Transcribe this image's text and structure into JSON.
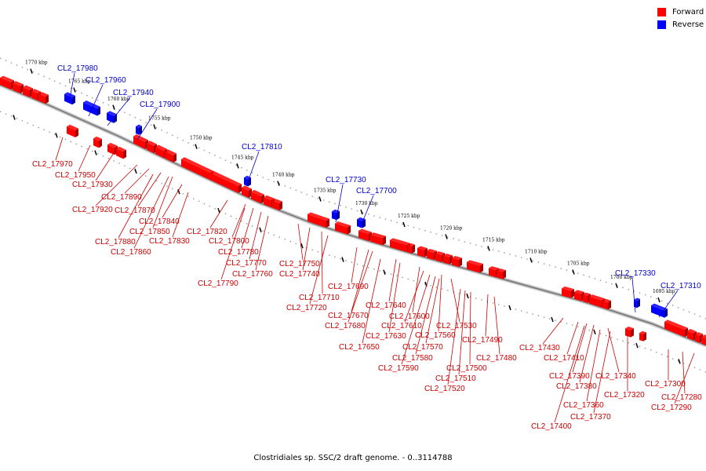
{
  "caption": "Clostridiales sp. SSC/2 draft genome. - 0..3114788",
  "legend": [
    {
      "label": "Forward",
      "color": "#ff0000"
    },
    {
      "label": "Reverse",
      "color": "#0000ff"
    }
  ],
  "colors": {
    "forward": "#ff0000",
    "forward_dark": "#a40000",
    "reverse": "#0000ff",
    "reverse_dark": "#00009a",
    "backbone": "#808080",
    "label_forward": "#cc0000",
    "label_reverse": "#0000cc"
  },
  "ruler_ticks": [
    "1770 kbp",
    "1765 kbp",
    "1760 kbp",
    "1755 kbp",
    "1750 kbp",
    "1745 kbp",
    "1740 kbp",
    "1735 kbp",
    "1730 kbp",
    "1725 kbp",
    "1720 kbp",
    "1715 kbp",
    "1710 kbp",
    "1705 kbp",
    "1700 kbp",
    "1695 kbp"
  ],
  "forward_gene_labels": [
    "CL2_17970",
    "CL2_17950",
    "CL2_17930",
    "CL2_17920",
    "CL2_17890",
    "CL2_17870",
    "CL2_17880",
    "CL2_17860",
    "CL2_17850",
    "CL2_17840",
    "CL2_17830",
    "CL2_17820",
    "CL2_17800",
    "CL2_17780",
    "CL2_17770",
    "CL2_17760",
    "CL2_17790",
    "CL2_17750",
    "CL2_17740",
    "CL2_17710",
    "CL2_17720",
    "CL2_17690",
    "CL2_17670",
    "CL2_17680",
    "CL2_17640",
    "CL2_17600",
    "CL2_17610",
    "CL2_17630",
    "CL2_17650",
    "CL2_17560",
    "CL2_17530",
    "CL2_17570",
    "CL2_17580",
    "CL2_17590",
    "CL2_17490",
    "CL2_17480",
    "CL2_17500",
    "CL2_17510",
    "CL2_17520",
    "CL2_17430",
    "CL2_17410",
    "CL2_17390",
    "CL2_17380",
    "CL2_17340",
    "CL2_17320",
    "CL2_17360",
    "CL2_17370",
    "CL2_17400",
    "CL2_17300",
    "CL2_17280",
    "CL2_17290"
  ],
  "reverse_gene_labels": [
    "CL2_17980",
    "CL2_17960",
    "CL2_17940",
    "CL2_17900",
    "CL2_17810",
    "CL2_17730",
    "CL2_17700",
    "CL2_17330",
    "CL2_17310"
  ]
}
